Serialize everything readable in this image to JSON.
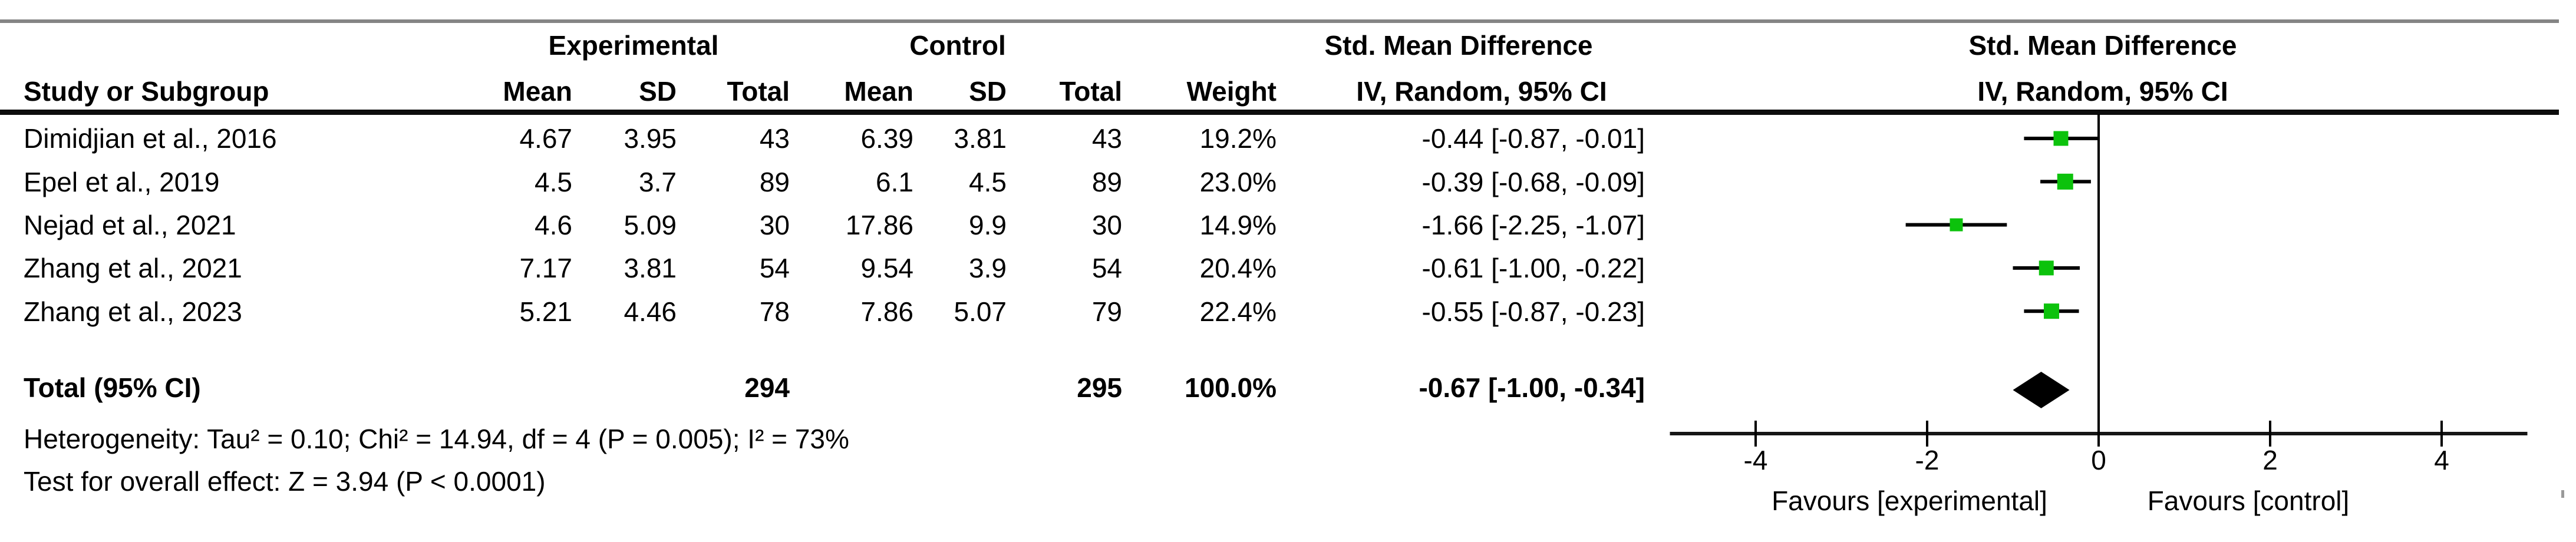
{
  "figure": {
    "kind": "forest-plot-meta-analysis"
  },
  "table": {
    "headers": {
      "group_experimental": "Experimental",
      "group_control": "Control",
      "smd_text_line1": "Std. Mean Difference",
      "smd_text_line2": "IV, Random, 95% CI",
      "smd_plot_line1": "Std. Mean Difference",
      "smd_plot_line2": "IV, Random, 95% CI",
      "study": "Study or Subgroup",
      "exp_mean": "Mean",
      "exp_sd": "SD",
      "exp_total": "Total",
      "ctrl_mean": "Mean",
      "ctrl_sd": "SD",
      "ctrl_total": "Total",
      "weight": "Weight"
    },
    "rows": [
      {
        "study": "Dimidjian et al., 2016",
        "exp_mean": "4.67",
        "exp_sd": "3.95",
        "exp_total": "43",
        "ctrl_mean": "6.39",
        "ctrl_sd": "3.81",
        "ctrl_total": "43",
        "weight": "19.2%",
        "smd_ci": "-0.44 [-0.87, -0.01]"
      },
      {
        "study": "Epel et al., 2019",
        "exp_mean": "4.5",
        "exp_sd": "3.7",
        "exp_total": "89",
        "ctrl_mean": "6.1",
        "ctrl_sd": "4.5",
        "ctrl_total": "89",
        "weight": "23.0%",
        "smd_ci": "-0.39 [-0.68, -0.09]"
      },
      {
        "study": "Nejad et al., 2021",
        "exp_mean": "4.6",
        "exp_sd": "5.09",
        "exp_total": "30",
        "ctrl_mean": "17.86",
        "ctrl_sd": "9.9",
        "ctrl_total": "30",
        "weight": "14.9%",
        "smd_ci": "-1.66 [-2.25, -1.07]"
      },
      {
        "study": "Zhang et al., 2021",
        "exp_mean": "7.17",
        "exp_sd": "3.81",
        "exp_total": "54",
        "ctrl_mean": "9.54",
        "ctrl_sd": "3.9",
        "ctrl_total": "54",
        "weight": "20.4%",
        "smd_ci": "-0.61 [-1.00, -0.22]"
      },
      {
        "study": "Zhang et al., 2023",
        "exp_mean": "5.21",
        "exp_sd": "4.46",
        "exp_total": "78",
        "ctrl_mean": "7.86",
        "ctrl_sd": "5.07",
        "ctrl_total": "79",
        "weight": "22.4%",
        "smd_ci": "-0.55 [-0.87, -0.23]"
      }
    ],
    "total_row": {
      "label": "Total (95% CI)",
      "exp_total": "294",
      "ctrl_total": "295",
      "weight": "100.0%",
      "smd_ci": "-0.67 [-1.00, -0.34]"
    },
    "heterogeneity": "Heterogeneity: Tau² = 0.10; Chi² = 14.94, df = 4 (P = 0.005); I² = 73%",
    "overall_effect": "Test for overall effect: Z = 3.94 (P < 0.0001)"
  },
  "chart_data": {
    "type": "forest",
    "effect_measure": "Std. Mean Difference",
    "model": "IV, Random, 95% CI",
    "x_ticks": [
      -4,
      -2,
      0,
      2,
      4
    ],
    "x_tick_labels": [
      "-4",
      "-2",
      "0",
      "2",
      "4"
    ],
    "xlim": [
      -5,
      5
    ],
    "zero_line": 0,
    "favours_left": "Favours [experimental]",
    "favours_right": "Favours [control]",
    "studies": [
      {
        "name": "Dimidjian et al., 2016",
        "smd": -0.44,
        "ci_low": -0.87,
        "ci_high": -0.01,
        "weight_pct": 19.2
      },
      {
        "name": "Epel et al., 2019",
        "smd": -0.39,
        "ci_low": -0.68,
        "ci_high": -0.09,
        "weight_pct": 23.0
      },
      {
        "name": "Nejad et al., 2021",
        "smd": -1.66,
        "ci_low": -2.25,
        "ci_high": -1.07,
        "weight_pct": 14.9
      },
      {
        "name": "Zhang et al., 2021",
        "smd": -0.61,
        "ci_low": -1.0,
        "ci_high": -0.22,
        "weight_pct": 20.4
      },
      {
        "name": "Zhang et al., 2023",
        "smd": -0.55,
        "ci_low": -0.87,
        "ci_high": -0.23,
        "weight_pct": 22.4
      }
    ],
    "total": {
      "name": "Total (95% CI)",
      "smd": -0.67,
      "ci_low": -1.0,
      "ci_high": -0.34,
      "weight_pct": 100.0
    }
  },
  "colors": {
    "marker_green": "#0cc20c",
    "diamond_black": "#000000",
    "top_rule_gray": "#848484",
    "header_rule_black": "#0d0d0d",
    "text": "#000000"
  }
}
